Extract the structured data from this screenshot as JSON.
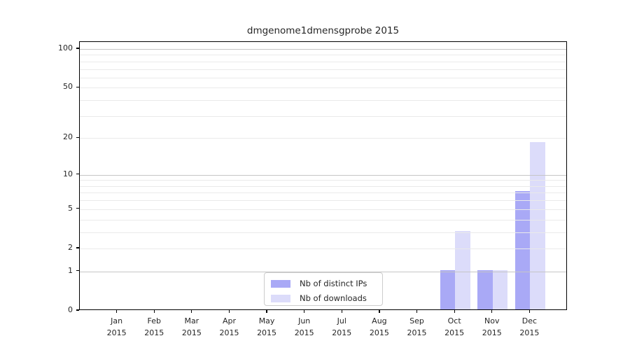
{
  "chart_data": {
    "type": "bar",
    "title": "dmgenome1dmensgprobe 2015",
    "categories": [
      "Jan",
      "Feb",
      "Mar",
      "Apr",
      "May",
      "Jun",
      "Jul",
      "Aug",
      "Sep",
      "Oct",
      "Nov",
      "Dec"
    ],
    "category_year": "2015",
    "series": [
      {
        "name": "Nb of distinct IPs",
        "color": "#a9a9f6",
        "values": [
          0,
          0,
          0,
          0,
          0,
          0,
          0,
          0,
          0,
          1,
          1,
          7
        ]
      },
      {
        "name": "Nb of downloads",
        "color": "#dcdcfa",
        "values": [
          0,
          0,
          0,
          0,
          0,
          0,
          0,
          0,
          0,
          3,
          1,
          18
        ]
      }
    ],
    "yscale": "log1p",
    "yticks": [
      0,
      1,
      2,
      5,
      10,
      20,
      50,
      100
    ],
    "ylim": [
      0,
      113
    ],
    "grid": "horizontal",
    "grid_minor_values": [
      2,
      3,
      4,
      5,
      6,
      7,
      8,
      9,
      20,
      30,
      40,
      50,
      60,
      70,
      80,
      90
    ],
    "grid_major_values": [
      1,
      10,
      100
    ],
    "legend_position": "lower-center"
  },
  "colors": {
    "axis_frame": "#000000",
    "text": "#262626",
    "grid_major": "#c6c6c6",
    "grid_minor": "#eaeaea",
    "legend_border": "#cccccc",
    "background": "#ffffff"
  }
}
